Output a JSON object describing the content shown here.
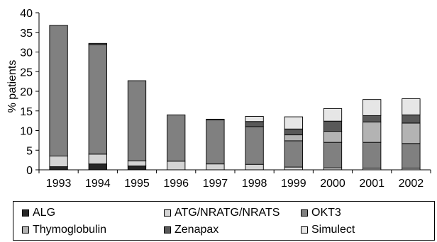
{
  "chart_data": {
    "type": "bar",
    "stacked": true,
    "ylabel": "% patients",
    "xlabel": "",
    "ylim": [
      0,
      40
    ],
    "yticks": [
      0,
      5,
      10,
      15,
      20,
      25,
      30,
      35,
      40
    ],
    "grid": false,
    "legend_position": "bottom",
    "categories": [
      "1993",
      "1994",
      "1995",
      "1996",
      "1997",
      "1998",
      "1999",
      "2000",
      "2001",
      "2002"
    ],
    "series": [
      {
        "name": "ALG",
        "color": "#262626",
        "values": [
          0.8,
          1.5,
          1.0,
          0,
          0,
          0,
          0,
          0,
          0,
          0
        ]
      },
      {
        "name": "ATG/NRATG/NRATS",
        "color": "#d4d4d4",
        "values": [
          2.7,
          2.5,
          1.3,
          2.2,
          1.5,
          1.4,
          0.7,
          0.5,
          0.4,
          0.4
        ]
      },
      {
        "name": "OKT3",
        "color": "#808080",
        "values": [
          33.3,
          27.9,
          20.4,
          11.8,
          11.2,
          9.6,
          6.7,
          6.5,
          6.6,
          6.3
        ]
      },
      {
        "name": "Thymoglobulin",
        "color": "#b3b3b3",
        "values": [
          0,
          0,
          0,
          0,
          0,
          0,
          1.5,
          2.8,
          5.2,
          5.2
        ]
      },
      {
        "name": "Zenapax",
        "color": "#595959",
        "values": [
          0,
          0.3,
          0,
          0,
          0.2,
          1.3,
          1.5,
          2.6,
          1.6,
          2.1
        ]
      },
      {
        "name": "Simulect",
        "color": "#e6e6e6",
        "values": [
          0,
          0,
          0,
          0,
          0,
          1.3,
          3.1,
          3.2,
          4.1,
          4.1
        ]
      }
    ]
  }
}
